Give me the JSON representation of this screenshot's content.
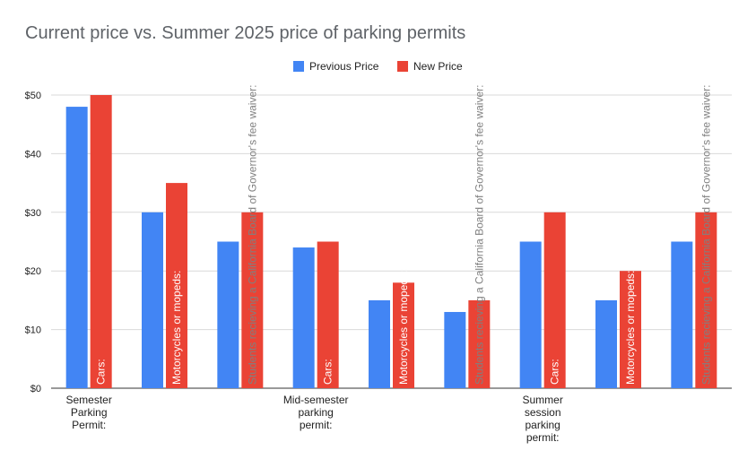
{
  "chart_data": {
    "type": "bar",
    "title": "Current price vs. Summer 2025 price of parking permits",
    "xlabel": "",
    "ylabel": "",
    "ylim": [
      0,
      50
    ],
    "yticks": [
      "$0",
      "$10",
      "$20",
      "$30",
      "$40",
      "$50"
    ],
    "grid": true,
    "legend_position": "top",
    "categories": [
      "Semester Parking Permit:",
      "",
      "",
      "Mid-semester parking permit:",
      "",
      "",
      "Summer session parking permit:",
      "",
      ""
    ],
    "series": [
      {
        "name": "Previous Price",
        "color": "#4285f4",
        "values": [
          48,
          30,
          25,
          24,
          15,
          13,
          25,
          15,
          25
        ]
      },
      {
        "name": "New Price",
        "color": "#ea4335",
        "values": [
          50,
          35,
          30,
          25,
          18,
          15,
          30,
          20,
          30
        ]
      }
    ],
    "annotations": [
      "Cars:",
      "Motorcycles or mopeds:",
      "Students recieving a California Board of Governor's fee waiver:",
      "Cars:",
      "Motorcycles or mopeds:",
      "Students recieving a California Board of Governor's fee waiver:",
      "Cars:",
      "Motorcycles or mopeds:",
      "Students recieving a California Board of Governor's fee waiver:"
    ]
  }
}
